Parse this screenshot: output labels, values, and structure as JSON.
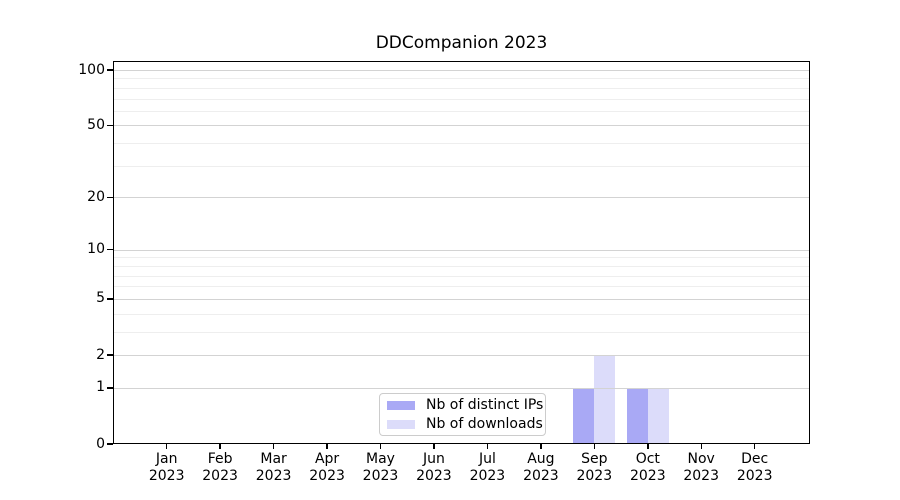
{
  "chart_data": {
    "type": "bar",
    "title": "DDCompanion 2023",
    "x_months": [
      "Jan",
      "Feb",
      "Mar",
      "Apr",
      "May",
      "Jun",
      "Jul",
      "Aug",
      "Sep",
      "Oct",
      "Nov",
      "Dec"
    ],
    "x_tick_year": "2023",
    "series": [
      {
        "name": "Nb of distinct IPs",
        "color": "#a9a9f5",
        "values": [
          0,
          0,
          0,
          0,
          0,
          0,
          0,
          0,
          1,
          1,
          0,
          0
        ]
      },
      {
        "name": "Nb of downloads",
        "color": "#dcdcfa",
        "values": [
          0,
          0,
          0,
          0,
          0,
          0,
          0,
          0,
          2,
          1,
          0,
          0
        ]
      }
    ],
    "y_axis": {
      "scale": "log10(1+v)",
      "major_ticks": [
        0,
        1,
        2,
        5,
        10,
        20,
        50,
        100
      ],
      "minor_gridlines": [
        3,
        4,
        6,
        7,
        8,
        9,
        30,
        40,
        60,
        70,
        80,
        90
      ],
      "ylim": [
        0,
        113
      ]
    },
    "grid": true,
    "legend_position": "bottom-center",
    "colors": {
      "major_grid": "#d3d3d3",
      "minor_grid": "#eeeeee",
      "spine": "#000000",
      "background": "#ffffff",
      "legend_border": "#cccccc"
    }
  }
}
